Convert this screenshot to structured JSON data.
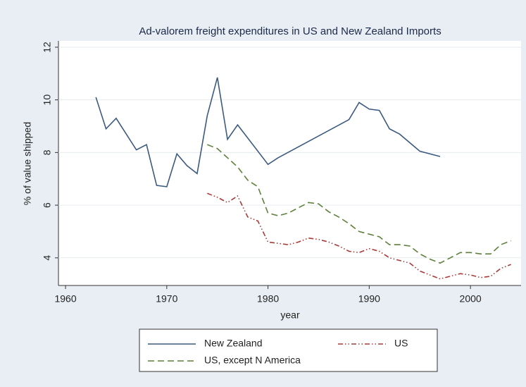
{
  "chart_data": {
    "type": "line",
    "title": "Ad-valorem freight expenditures in US and New Zealand Imports",
    "x_label": "year",
    "y_label": "% of value shipped",
    "xlim": [
      1959.3,
      2005
    ],
    "xticks": [
      1960,
      1970,
      1980,
      1990,
      2000
    ],
    "ylim": [
      2.95,
      12.24
    ],
    "yticks": [
      4,
      6,
      8,
      10,
      12
    ],
    "grid": true,
    "series": [
      {
        "name": "New Zealand",
        "color": "#3c5a80",
        "dash": "solid",
        "x": [
          1963,
          1964,
          1965,
          1966,
          1967,
          1968,
          1969,
          1970,
          1971,
          1972,
          1973,
          1974,
          1975,
          1976,
          1977,
          1980,
          1981,
          1988,
          1989,
          1990,
          1991,
          1992,
          1993,
          1995,
          1997
        ],
        "values": [
          10.1,
          8.9,
          9.3,
          8.7,
          8.1,
          8.3,
          6.75,
          6.7,
          7.95,
          7.5,
          7.2,
          9.4,
          10.85,
          8.5,
          9.05,
          7.55,
          7.8,
          9.25,
          9.9,
          9.65,
          9.6,
          8.9,
          8.7,
          8.05,
          7.85
        ]
      },
      {
        "name": "US",
        "color": "#a83a3a",
        "dash": "dashdot",
        "x": [
          1974,
          1975,
          1976,
          1977,
          1978,
          1979,
          1980,
          1981,
          1982,
          1983,
          1984,
          1985,
          1986,
          1987,
          1988,
          1989,
          1990,
          1991,
          1992,
          1993,
          1994,
          1995,
          1996,
          1997,
          1998,
          1999,
          2000,
          2001,
          2002,
          2003,
          2004
        ],
        "values": [
          6.45,
          6.3,
          6.1,
          6.35,
          5.55,
          5.4,
          4.6,
          4.55,
          4.5,
          4.6,
          4.75,
          4.7,
          4.6,
          4.45,
          4.25,
          4.2,
          4.35,
          4.25,
          4.0,
          3.9,
          3.8,
          3.5,
          3.35,
          3.2,
          3.3,
          3.4,
          3.35,
          3.25,
          3.3,
          3.6,
          3.75
        ]
      },
      {
        "name": "US, except N America",
        "color": "#5f7f3c",
        "dash": "dashed",
        "x": [
          1974,
          1975,
          1976,
          1977,
          1978,
          1979,
          1980,
          1981,
          1982,
          1983,
          1984,
          1985,
          1986,
          1987,
          1988,
          1989,
          1990,
          1991,
          1992,
          1993,
          1994,
          1995,
          1996,
          1997,
          1998,
          1999,
          2000,
          2001,
          2002,
          2003,
          2004
        ],
        "values": [
          8.3,
          8.15,
          7.8,
          7.45,
          6.95,
          6.7,
          5.7,
          5.6,
          5.7,
          5.9,
          6.1,
          6.05,
          5.75,
          5.55,
          5.3,
          5.0,
          4.9,
          4.8,
          4.5,
          4.5,
          4.45,
          4.15,
          3.95,
          3.8,
          4.0,
          4.2,
          4.2,
          4.15,
          4.15,
          4.5,
          4.65
        ]
      }
    ]
  }
}
